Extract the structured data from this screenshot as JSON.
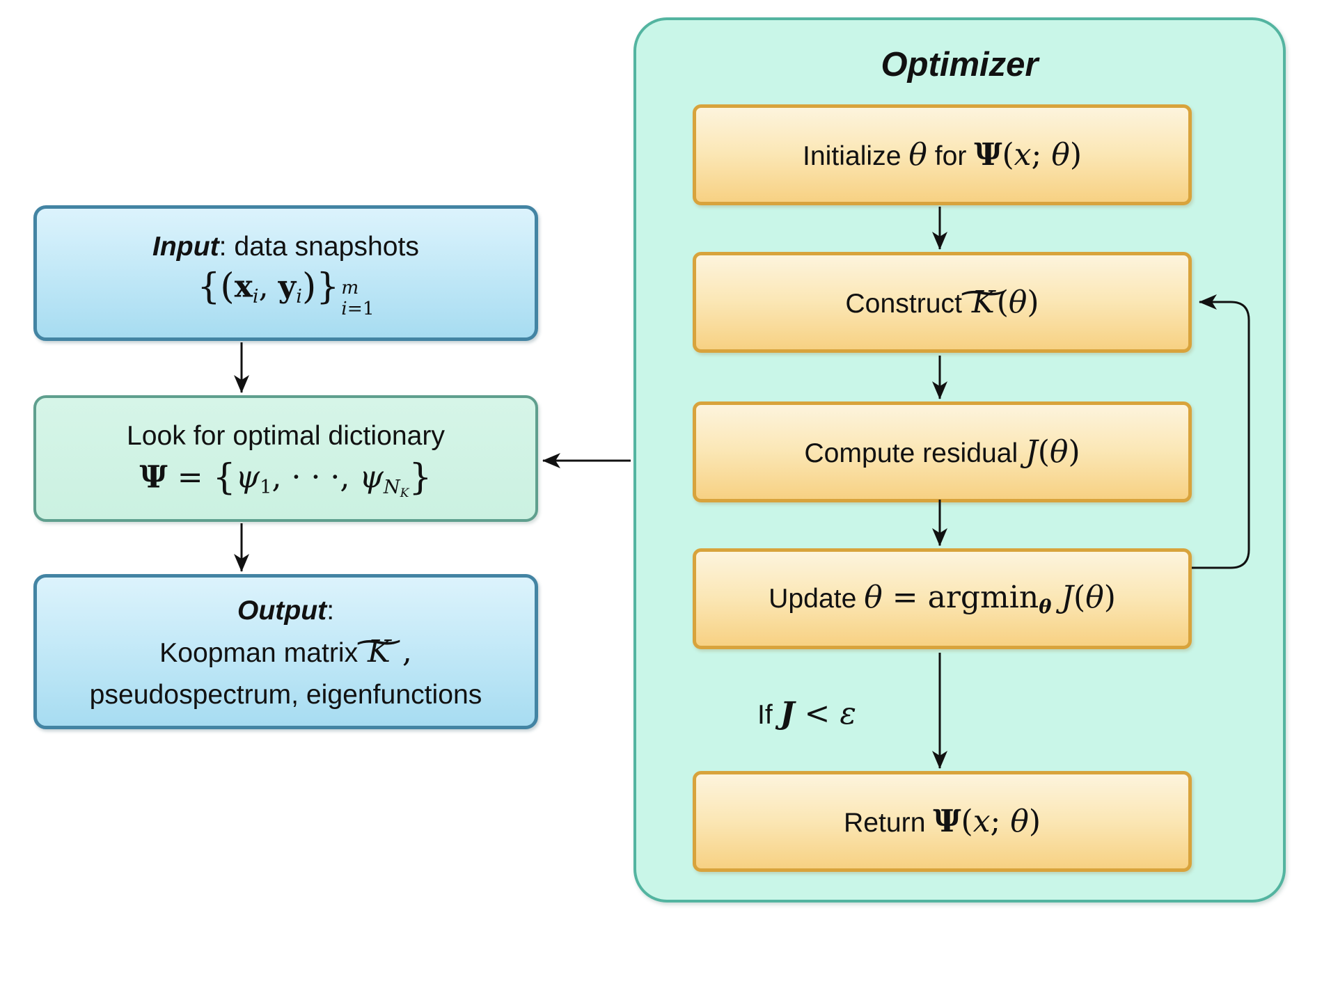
{
  "colors": {
    "blue_box_top": "#dcf3fc",
    "blue_box_bottom": "#a7dcf1",
    "blue_border": "#4384a3",
    "mint_box_fill": "#cff3e4",
    "mint_box_border": "#5f9f8e",
    "optimizer_fill": "#c9f6e8",
    "optimizer_border": "#53b4a0",
    "orange_box_top": "#fdf4dd",
    "orange_box_bottom": "#f7d183",
    "orange_border": "#d8a33c",
    "arrow": "#111111",
    "text": "#111111"
  },
  "left_column": {
    "input_box": {
      "line1": [
        {
          "t": "Input",
          "c": "sfbi"
        },
        {
          "t": ": data snapshots",
          "c": "sf"
        }
      ],
      "line2": [
        {
          "t": "{",
          "c": "rm big"
        },
        {
          "t": "(",
          "c": "rm big"
        },
        {
          "t": "x",
          "c": "bf"
        },
        {
          "sub": [
            {
              "t": "i",
              "c": "it"
            }
          ]
        },
        {
          "t": ", ",
          "c": "rm"
        },
        {
          "t": "y",
          "c": "bf"
        },
        {
          "sub": [
            {
              "t": "i",
              "c": "it"
            }
          ]
        },
        {
          "t": ")",
          "c": "rm big"
        },
        {
          "t": "}",
          "c": "rm big"
        },
        {
          "stack": {
            "sup": [
              {
                "t": "m",
                "c": "it"
              }
            ],
            "sub": [
              {
                "t": "i",
                "c": "it"
              },
              {
                "t": "=1",
                "c": "rm"
              }
            ]
          }
        }
      ]
    },
    "dictionary_box": {
      "line1": [
        {
          "t": "Look for optimal dictionary",
          "c": "sf"
        }
      ],
      "line2": [
        {
          "t": "Ψ",
          "c": "bf"
        },
        {
          "t": " = ",
          "c": "rm"
        },
        {
          "t": "{",
          "c": "rm big"
        },
        {
          "t": "ψ",
          "c": "it"
        },
        {
          "sub": [
            {
              "t": "1",
              "c": "rm"
            }
          ]
        },
        {
          "t": ", ",
          "c": "rm"
        },
        {
          "t": "· · ·",
          "c": "rm"
        },
        {
          "t": ", ",
          "c": "rm"
        },
        {
          "t": "ψ",
          "c": "it"
        },
        {
          "sub": [
            {
              "t": "N",
              "c": "it"
            },
            {
              "sub": [
                {
                  "t": "K",
                  "c": "it"
                }
              ]
            }
          ]
        },
        {
          "t": "}",
          "c": "rm big"
        }
      ]
    },
    "output_box": {
      "line1": [
        {
          "t": "Output",
          "c": "sfbi"
        },
        {
          "t": ":",
          "c": "sf"
        }
      ],
      "line2": [
        {
          "t": "Koopman matrix ",
          "c": "sf"
        },
        {
          "tilde": [
            {
              "t": "K",
              "c": "it"
            }
          ]
        },
        {
          "t": " ,",
          "c": "rm"
        }
      ],
      "line3": [
        {
          "t": "pseudospectrum, eigenfunctions",
          "c": "sf"
        }
      ]
    }
  },
  "optimizer": {
    "title": "Optimizer",
    "boxes": [
      {
        "id": "initialize",
        "tokens": [
          {
            "t": "Initialize ",
            "c": "sf"
          },
          {
            "t": "θ",
            "c": "it"
          },
          {
            "t": " for ",
            "c": "sf"
          },
          {
            "t": "Ψ",
            "c": "bf"
          },
          {
            "t": "(",
            "c": "rm"
          },
          {
            "t": "x",
            "c": "it"
          },
          {
            "t": "; ",
            "c": "rm"
          },
          {
            "t": "θ",
            "c": "it"
          },
          {
            "t": ")",
            "c": "rm"
          }
        ]
      },
      {
        "id": "construct",
        "tokens": [
          {
            "t": "Construct ",
            "c": "sf"
          },
          {
            "tilde": [
              {
                "t": "K",
                "c": "it"
              }
            ]
          },
          {
            "t": "(",
            "c": "rm"
          },
          {
            "t": "θ",
            "c": "it"
          },
          {
            "t": ")",
            "c": "rm"
          }
        ]
      },
      {
        "id": "residual",
        "tokens": [
          {
            "t": "Compute residual ",
            "c": "sf"
          },
          {
            "t": "J",
            "c": "it"
          },
          {
            "t": "(",
            "c": "rm"
          },
          {
            "t": "θ",
            "c": "it"
          },
          {
            "t": ")",
            "c": "rm"
          }
        ]
      },
      {
        "id": "update",
        "tokens": [
          {
            "t": "Update ",
            "c": "sf"
          },
          {
            "t": "θ",
            "c": "it"
          },
          {
            "t": " = ",
            "c": "rm"
          },
          {
            "t": "argmin",
            "c": "rm"
          },
          {
            "sub": [
              {
                "t": "θ",
                "c": "bi"
              }
            ]
          },
          {
            "t": " ",
            "c": "rm"
          },
          {
            "t": "J",
            "c": "it"
          },
          {
            "t": "(",
            "c": "rm"
          },
          {
            "t": "θ",
            "c": "it"
          },
          {
            "t": ")",
            "c": "rm"
          }
        ]
      },
      {
        "id": "return",
        "tokens": [
          {
            "t": "Return ",
            "c": "sf"
          },
          {
            "t": "Ψ",
            "c": "bf"
          },
          {
            "t": "(",
            "c": "rm"
          },
          {
            "t": "x",
            "c": "it"
          },
          {
            "t": "; ",
            "c": "rm"
          },
          {
            "t": "θ",
            "c": "it"
          },
          {
            "t": ")",
            "c": "rm"
          }
        ]
      }
    ],
    "condition": [
      {
        "t": "If ",
        "c": "sf"
      },
      {
        "t": "J",
        "c": "bi"
      },
      {
        "t": " < ",
        "c": "rm"
      },
      {
        "t": "ε",
        "c": "it"
      }
    ]
  }
}
